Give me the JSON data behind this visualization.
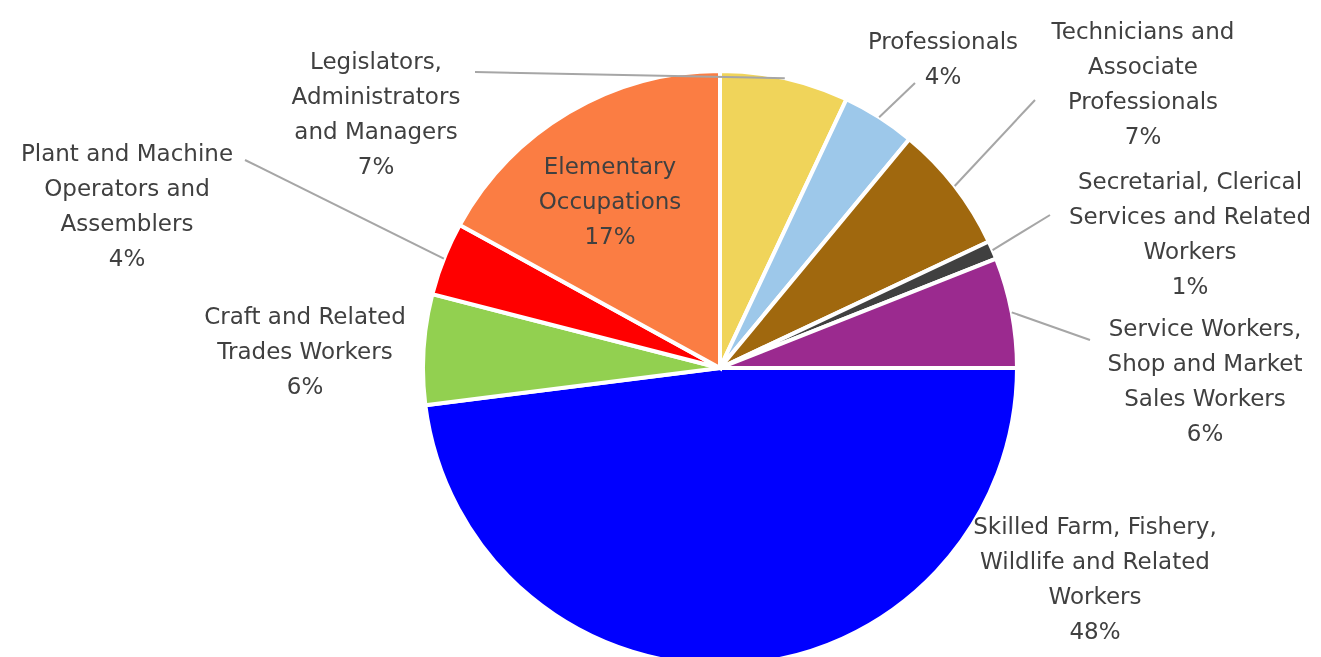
{
  "chart_data": {
    "type": "pie",
    "categories": [
      "Legislators, Administrators and Managers",
      "Professionals",
      "Technicians and Associate Professionals",
      "Secretarial, Clerical Services and Related Workers",
      "Service Workers, Shop and Market Sales Workers",
      "Skilled Farm, Fishery, Wildlife and Related Workers",
      "Craft and Related Trades Workers",
      "Plant and Machine Operators and Assemblers",
      "Elementary Occupations"
    ],
    "values": [
      7,
      4,
      7,
      1,
      6,
      48,
      6,
      4,
      17
    ],
    "value_labels": [
      "7%",
      "4%",
      "7%",
      "1%",
      "6%",
      "48%",
      "6%",
      "4%",
      "17%"
    ],
    "colors": [
      "#f0d45a",
      "#9dc8ea",
      "#a0680e",
      "#404040",
      "#9b2a8f",
      "#0000ff",
      "#92d050",
      "#ff0000",
      "#fb7d43"
    ]
  }
}
